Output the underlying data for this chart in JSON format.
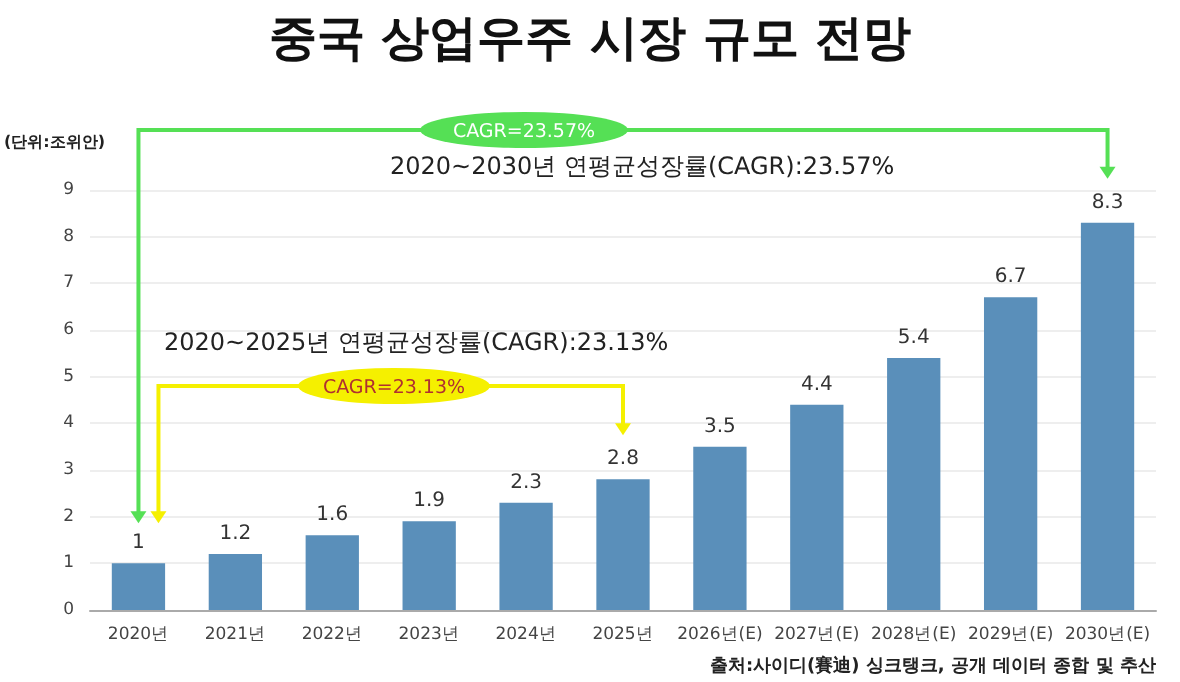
{
  "chart_data": {
    "type": "bar",
    "title": "중국 상업우주 시장 규모 전망",
    "categories": [
      "2020년",
      "2021년",
      "2022년",
      "2023년",
      "2024년",
      "2025년",
      "2026년(E)",
      "2027년(E)",
      "2028년(E)",
      "2029년(E)",
      "2030년(E)"
    ],
    "values": [
      1,
      1.2,
      1.6,
      1.9,
      2.3,
      2.8,
      3.5,
      4.4,
      5.4,
      6.7,
      8.3
    ],
    "color": "#5a8fba",
    "ylim": [
      0,
      9
    ],
    "yticks": [
      0,
      1,
      2,
      3,
      4,
      5,
      6,
      7,
      8,
      9
    ],
    "grid": "y",
    "data_labels": true,
    "annotations": [
      "(단위:조위안)",
      "CAGR=23.57%",
      "2020~2030년 연평균성장률(CAGR):23.57%",
      "2020~2025년 연평균성장률(CAGR):23.13%",
      "CAGR=23.13%",
      "출처:사이디(賽迪) 싱크탱크, 공개 데이터 종합 및 추산"
    ]
  }
}
